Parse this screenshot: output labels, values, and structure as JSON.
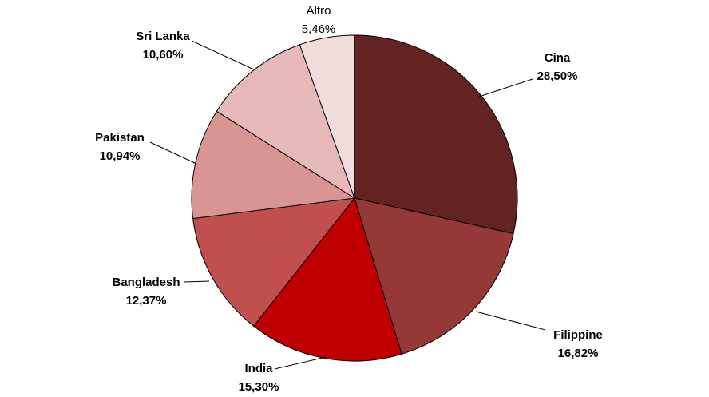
{
  "chart_data": {
    "type": "pie",
    "title": "",
    "slices": [
      {
        "label": "Cina",
        "value": 28.5,
        "value_text": "28,50%",
        "color": "#632323",
        "bold": true
      },
      {
        "label": "Filippine",
        "value": 16.82,
        "value_text": "16,82%",
        "color": "#953838",
        "bold": true
      },
      {
        "label": "India",
        "value": 15.3,
        "value_text": "15,30%",
        "color": "#c00000",
        "bold": true
      },
      {
        "label": "Bangladesh",
        "value": 12.37,
        "value_text": "12,37%",
        "color": "#c0504d",
        "bold": true
      },
      {
        "label": "Pakistan",
        "value": 10.94,
        "value_text": "10,94%",
        "color": "#d99594",
        "bold": true
      },
      {
        "label": "Sri Lanka",
        "value": 10.6,
        "value_text": "10,60%",
        "color": "#e6b8b7",
        "bold": true
      },
      {
        "label": "Altro",
        "value": 5.46,
        "value_text": "5,46%",
        "color": "#f2dcdb",
        "bold": false
      }
    ],
    "start_angle": "12 o'clock",
    "direction": "clockwise",
    "legend": "none"
  }
}
